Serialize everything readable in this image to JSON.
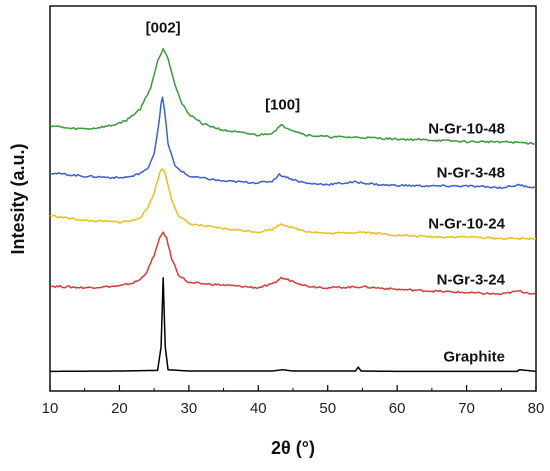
{
  "chart_data": {
    "type": "line",
    "xlabel": "2θ (°)",
    "ylabel": "Intesity (a.u.)",
    "xlim": [
      10,
      80
    ],
    "ylim": [
      0,
      100
    ],
    "x_ticks": [
      10,
      20,
      30,
      40,
      50,
      60,
      70,
      80
    ],
    "y_ticks_shown": false,
    "grid": false,
    "legend": "none (series labeled inline on the right)",
    "annotations": [
      {
        "text": "[002]",
        "x": 26.3
      },
      {
        "text": "[100]",
        "x": 43.5
      }
    ],
    "series": [
      {
        "name": "Graphite",
        "color": "#000000",
        "x": [
          10,
          20,
          25.5,
          26.0,
          26.3,
          26.6,
          27.0,
          30,
          42,
          43.5,
          45,
          54.0,
          54.4,
          54.8,
          60,
          77.3,
          77.6,
          80
        ],
        "y": [
          0.5,
          0.6,
          0.8,
          8,
          29,
          8,
          1.0,
          0.6,
          0.6,
          1.0,
          0.6,
          0.6,
          1.8,
          0.6,
          0.5,
          0.5,
          1.0,
          0.5
        ]
      },
      {
        "name": "N-Gr-3-24",
        "color": "#d93a3a",
        "x": [
          10,
          15,
          20,
          22,
          23,
          24,
          25,
          25.8,
          26.3,
          26.8,
          27.5,
          28.5,
          30,
          35,
          40,
          42,
          43.3,
          45,
          47,
          50,
          55,
          60,
          65,
          70,
          75,
          77.5,
          80
        ],
        "y": [
          26.5,
          26.0,
          26.5,
          27.5,
          28.5,
          31,
          36,
          41,
          43,
          41,
          35,
          30,
          27.5,
          26.8,
          26.0,
          27.0,
          29.0,
          28.0,
          26.5,
          26.0,
          26.3,
          25.5,
          25.0,
          24.5,
          24.0,
          25.0,
          24.0
        ]
      },
      {
        "name": "N-Gr-10-24",
        "color": "#ebbf1c",
        "x": [
          10,
          15,
          20,
          22,
          23,
          24,
          25,
          25.8,
          26.2,
          26.7,
          27.5,
          28.5,
          30,
          35,
          40,
          42,
          43.3,
          45,
          47,
          50,
          55,
          60,
          65,
          70,
          75,
          80
        ],
        "y": [
          48.0,
          46.5,
          46.0,
          46.5,
          47.5,
          50,
          55,
          61,
          62.5,
          60,
          53,
          48,
          45.5,
          44.0,
          43.0,
          43.8,
          45.5,
          44.2,
          43.2,
          42.5,
          43.0,
          42.0,
          41.5,
          41.5,
          41.0,
          41.0
        ]
      },
      {
        "name": "N-Gr-3-48",
        "color": "#3d5fd6",
        "x": [
          10,
          15,
          20,
          22,
          24,
          25,
          25.6,
          26.0,
          26.2,
          26.5,
          27.0,
          28,
          30,
          35,
          40,
          42,
          43.0,
          45,
          47,
          50,
          54,
          58,
          65,
          70,
          75,
          77.5,
          80
        ],
        "y": [
          61.0,
          60.0,
          59.5,
          60.0,
          62,
          67,
          75,
          82,
          84,
          80,
          70,
          63,
          60,
          58.5,
          58.0,
          58.5,
          60.5,
          59.0,
          57.8,
          57.5,
          58.2,
          57.3,
          57.0,
          57.0,
          56.5,
          57.3,
          56.5
        ]
      },
      {
        "name": "N-Gr-10-48",
        "color": "#3a9a3a",
        "x": [
          10,
          13,
          16,
          19,
          21,
          23,
          24.5,
          25.5,
          26.3,
          27.0,
          28,
          29,
          30,
          32,
          35,
          40,
          42,
          43.3,
          45,
          47,
          50,
          55,
          60,
          65,
          70,
          75,
          80
        ],
        "y": [
          75.5,
          74.5,
          74.5,
          75.5,
          77,
          80.5,
          87,
          95,
          99,
          96,
          88,
          82,
          79,
          76,
          74,
          72.5,
          73.2,
          75.5,
          74.0,
          72.5,
          72.0,
          71.8,
          71.3,
          71.0,
          70.5,
          70.5,
          70.0
        ]
      }
    ]
  }
}
